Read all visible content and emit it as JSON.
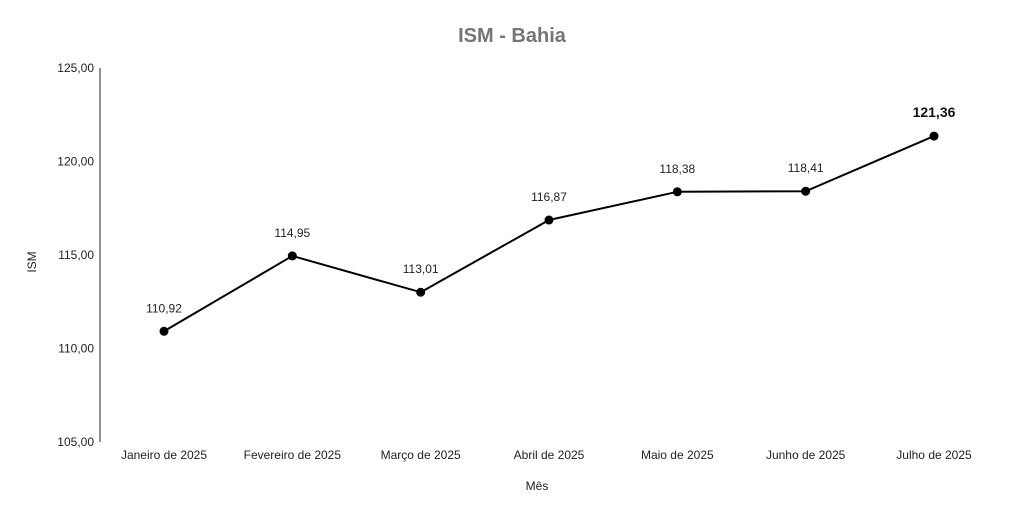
{
  "chart_data": {
    "type": "line",
    "title": "ISM - Bahia",
    "xlabel": "Mês",
    "ylabel": "ISM",
    "ylim": [
      105,
      125
    ],
    "yticks": [
      "105,00",
      "110,00",
      "115,00",
      "120,00",
      "125,00"
    ],
    "yticks_values": [
      105,
      110,
      115,
      120,
      125
    ],
    "categories": [
      "Janeiro de 2025",
      "Fevereiro de 2025",
      "Março de 2025",
      "Abril de 2025",
      "Maio de 2025",
      "Junho de 2025",
      "Julho de 2025"
    ],
    "values": [
      110.92,
      114.95,
      113.01,
      116.87,
      118.38,
      118.41,
      121.36
    ],
    "value_labels": [
      "110,92",
      "114,95",
      "113,01",
      "116,87",
      "118,38",
      "118,41",
      "121,36"
    ],
    "grid": false,
    "colors": {
      "line": "#000000",
      "title": "#757575"
    }
  }
}
